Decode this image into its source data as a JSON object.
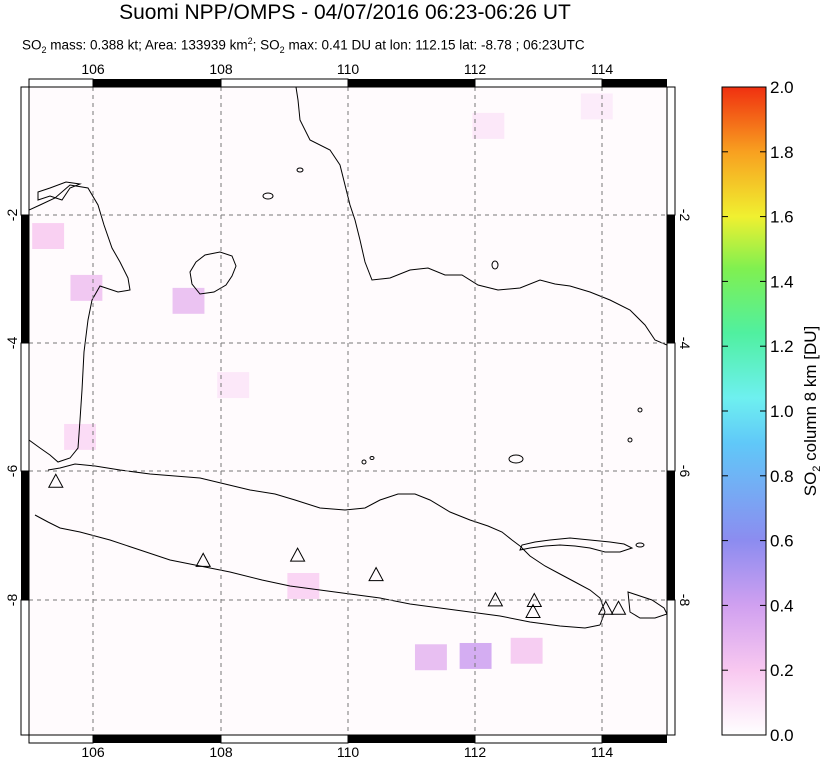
{
  "title": "Suomi NPP/OMPS - 04/07/2016 06:23-06:26 UT",
  "subtitle": {
    "pre_so2": "SO",
    "sub2a": "2",
    "mass_text": " mass: 0.388 kt; Area: 133939 km",
    "sup2": "2",
    "mid_text": "; SO",
    "sub2b": "2",
    "rest_text": " max: 0.41 DU at lon: 112.15 lat: -8.78 ; 06:23UTC"
  },
  "colorbar": {
    "label": "SO2 column 8 km [DU]",
    "ticks": [
      "0.0",
      "0.2",
      "0.4",
      "0.6",
      "0.8",
      "1.0",
      "1.2",
      "1.4",
      "1.6",
      "1.8",
      "2.0"
    ]
  },
  "chart_data": {
    "type": "heatmap",
    "title": "Suomi NPP/OMPS - 04/07/2016 06:23-06:26 UT",
    "xlim": [
      105,
      115
    ],
    "ylim": [
      -10,
      0
    ],
    "x_ticks": [
      "106",
      "108",
      "110",
      "112",
      "114"
    ],
    "y_ticks": [
      "-2",
      "-4",
      "-6",
      "-8"
    ],
    "grid": true,
    "colorscale": {
      "min": 0.0,
      "max": 2.0,
      "label": "SO2 column 8 km [DU]"
    },
    "volcanoes": [
      {
        "lon": 105.42,
        "lat": -6.1
      },
      {
        "lon": 107.73,
        "lat": -7.32
      },
      {
        "lon": 109.21,
        "lat": -7.24
      },
      {
        "lon": 110.44,
        "lat": -7.54
      },
      {
        "lon": 112.31,
        "lat": -7.93
      },
      {
        "lon": 112.92,
        "lat": -7.94
      },
      {
        "lon": 112.9,
        "lat": -8.11
      },
      {
        "lon": 114.04,
        "lat": -8.06
      },
      {
        "lon": 114.24,
        "lat": -8.06
      }
    ],
    "so2_cells": [
      {
        "lon": 105.3,
        "lat": -2.3,
        "v": 0.2
      },
      {
        "lon": 105.9,
        "lat": -3.1,
        "v": 0.25
      },
      {
        "lon": 107.5,
        "lat": -3.3,
        "v": 0.28
      },
      {
        "lon": 105.8,
        "lat": -5.4,
        "v": 0.15
      },
      {
        "lon": 108.2,
        "lat": -4.6,
        "v": 0.1
      },
      {
        "lon": 112.0,
        "lat": -8.78,
        "v": 0.41
      },
      {
        "lon": 111.3,
        "lat": -8.8,
        "v": 0.3
      },
      {
        "lon": 112.8,
        "lat": -8.7,
        "v": 0.22
      },
      {
        "lon": 109.3,
        "lat": -7.7,
        "v": 0.18
      },
      {
        "lon": 112.2,
        "lat": -0.6,
        "v": 0.1
      },
      {
        "lon": 113.9,
        "lat": -0.3,
        "v": 0.08
      }
    ]
  }
}
